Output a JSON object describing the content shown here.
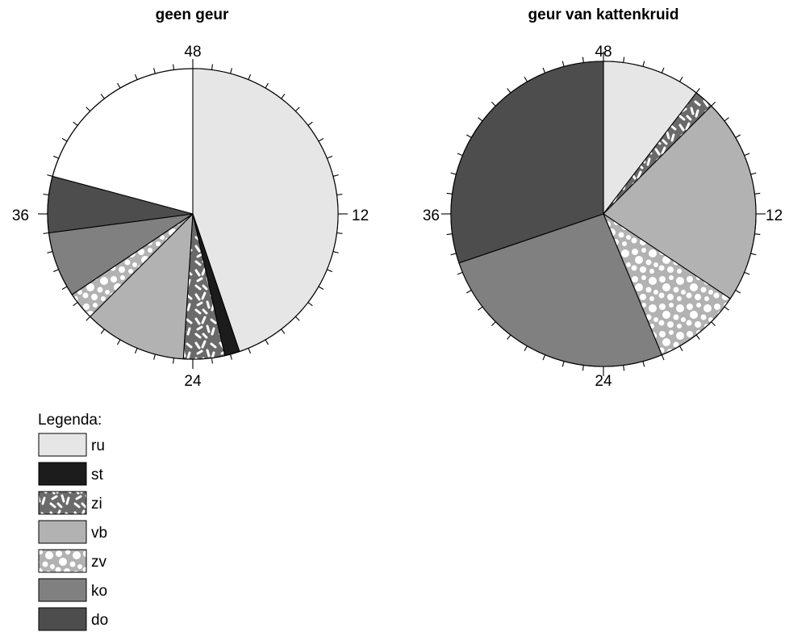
{
  "chart_data": [
    {
      "type": "pie",
      "title": "geen geur",
      "scale_max": 48,
      "tick_labels": [
        "48",
        "12",
        "24",
        "36"
      ],
      "slices": [
        {
          "category": "ru",
          "value": 21.5
        },
        {
          "category": "st",
          "value": 0.8
        },
        {
          "category": "zi",
          "value": 2.2
        },
        {
          "category": "vb",
          "value": 5.5
        },
        {
          "category": "zv",
          "value": 1.5
        },
        {
          "category": "ko",
          "value": 3.5
        },
        {
          "category": "do",
          "value": 3.0
        }
      ]
    },
    {
      "type": "pie",
      "title": "geur van kattenkruid",
      "scale_max": 48,
      "tick_labels": [
        "48",
        "12",
        "24",
        "36"
      ],
      "slices": [
        {
          "category": "ru",
          "value": 5.0
        },
        {
          "category": "st",
          "value": 0.0
        },
        {
          "category": "zi",
          "value": 1.0
        },
        {
          "category": "vb",
          "value": 10.5
        },
        {
          "category": "zv",
          "value": 4.5
        },
        {
          "category": "ko",
          "value": 12.5
        },
        {
          "category": "do",
          "value": 14.5
        }
      ]
    }
  ],
  "legend": {
    "title": "Legenda:",
    "items": [
      {
        "label": "ru",
        "fill": "solid",
        "color": "#e6e6e6"
      },
      {
        "label": "st",
        "fill": "solid",
        "color": "#1c1c1c"
      },
      {
        "label": "zi",
        "fill": "dashes",
        "color": "#6a6a6a",
        "pattern_color": "#ffffff"
      },
      {
        "label": "vb",
        "fill": "solid",
        "color": "#b2b2b2"
      },
      {
        "label": "zv",
        "fill": "dots",
        "color": "#b2b2b2",
        "pattern_color": "#ffffff"
      },
      {
        "label": "ko",
        "fill": "solid",
        "color": "#808080"
      },
      {
        "label": "do",
        "fill": "solid",
        "color": "#4d4d4d"
      }
    ]
  }
}
